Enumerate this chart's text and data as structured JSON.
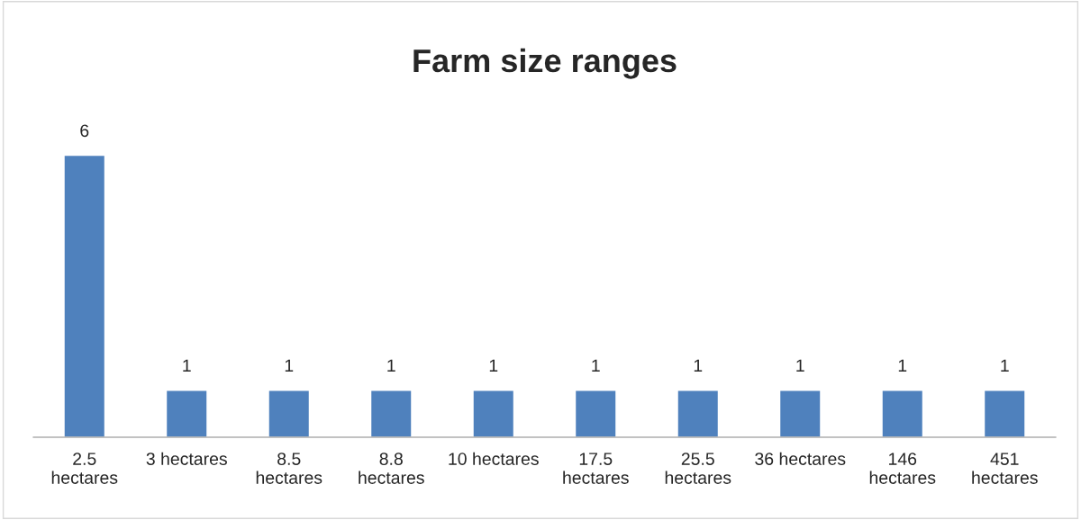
{
  "chart_data": {
    "type": "bar",
    "title": "Farm size ranges",
    "categories": [
      "2.5 hectares",
      "3 hectares",
      "8.5 hectares",
      "8.8 hectares",
      "10 hectares",
      "17.5 hectares",
      "25.5 hectares",
      "36 hectares",
      "146 hectares",
      "451 hectares"
    ],
    "values": [
      6,
      1,
      1,
      1,
      1,
      1,
      1,
      1,
      1,
      1
    ],
    "color": "#4f81bd",
    "data_labels": true,
    "grid": false,
    "legend": false
  }
}
